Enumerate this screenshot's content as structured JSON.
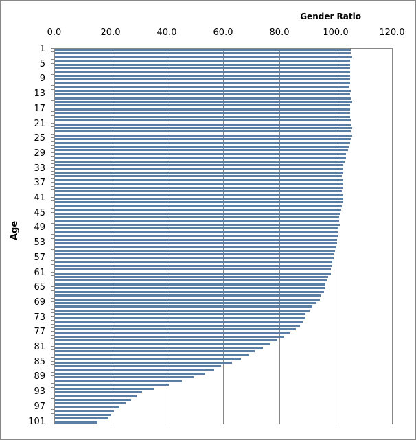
{
  "chart_data": {
    "type": "bar",
    "orientation": "horizontal",
    "title": "Gender Ratio",
    "xlabel": "Gender Ratio",
    "ylabel": "Age",
    "xlim": [
      0,
      120
    ],
    "x_ticks": [
      "0.0",
      "20.0",
      "40.0",
      "60.0",
      "80.0",
      "100.0",
      "120.0"
    ],
    "y_tick_labels": [
      "1",
      "5",
      "9",
      "13",
      "17",
      "21",
      "25",
      "29",
      "33",
      "37",
      "41",
      "45",
      "49",
      "53",
      "57",
      "61",
      "65",
      "69",
      "73",
      "77",
      "81",
      "85",
      "89",
      "93",
      "97",
      "101"
    ],
    "categories": [
      1,
      2,
      3,
      4,
      5,
      6,
      7,
      8,
      9,
      10,
      11,
      12,
      13,
      14,
      15,
      16,
      17,
      18,
      19,
      20,
      21,
      22,
      23,
      24,
      25,
      26,
      27,
      28,
      29,
      30,
      31,
      32,
      33,
      34,
      35,
      36,
      37,
      38,
      39,
      40,
      41,
      42,
      43,
      44,
      45,
      46,
      47,
      48,
      49,
      50,
      51,
      52,
      53,
      54,
      55,
      56,
      57,
      58,
      59,
      60,
      61,
      62,
      63,
      64,
      65,
      66,
      67,
      68,
      69,
      70,
      71,
      72,
      73,
      74,
      75,
      76,
      77,
      78,
      79,
      80,
      81,
      82,
      83,
      84,
      85,
      86,
      87,
      88,
      89,
      90,
      91,
      92,
      93,
      94,
      95,
      96,
      97,
      98,
      99,
      100,
      101
    ],
    "values": [
      105.0,
      105.0,
      105.5,
      104.8,
      104.8,
      104.8,
      104.8,
      104.8,
      104.8,
      104.8,
      104.5,
      105.2,
      104.8,
      105.0,
      105.5,
      104.8,
      104.8,
      104.8,
      104.8,
      105.0,
      105.3,
      105.5,
      105.2,
      105.5,
      105.0,
      104.8,
      104.5,
      104.2,
      103.5,
      103.5,
      103.0,
      102.5,
      102.5,
      102.5,
      102.0,
      102.5,
      102.5,
      102.5,
      102.0,
      102.5,
      102.5,
      102.5,
      102.0,
      101.8,
      101.5,
      101.0,
      101.0,
      101.2,
      100.8,
      100.5,
      100.5,
      100.2,
      100.2,
      100.0,
      99.5,
      99.0,
      99.0,
      98.5,
      98.5,
      98.0,
      98.0,
      97.0,
      96.5,
      96.0,
      96.0,
      95.5,
      94.5,
      94.2,
      93.0,
      91.5,
      90.5,
      89.0,
      89.0,
      88.0,
      87.0,
      85.5,
      83.5,
      81.5,
      79.0,
      76.5,
      74.0,
      71.0,
      69.0,
      66.0,
      63.0,
      59.0,
      56.5,
      53.5,
      49.5,
      45.0,
      40.5,
      35.0,
      31.0,
      29.0,
      27.0,
      25.0,
      23.0,
      21.0,
      20.0,
      19.0,
      15.0
    ],
    "grid": true,
    "color": "#5b7ea5"
  }
}
